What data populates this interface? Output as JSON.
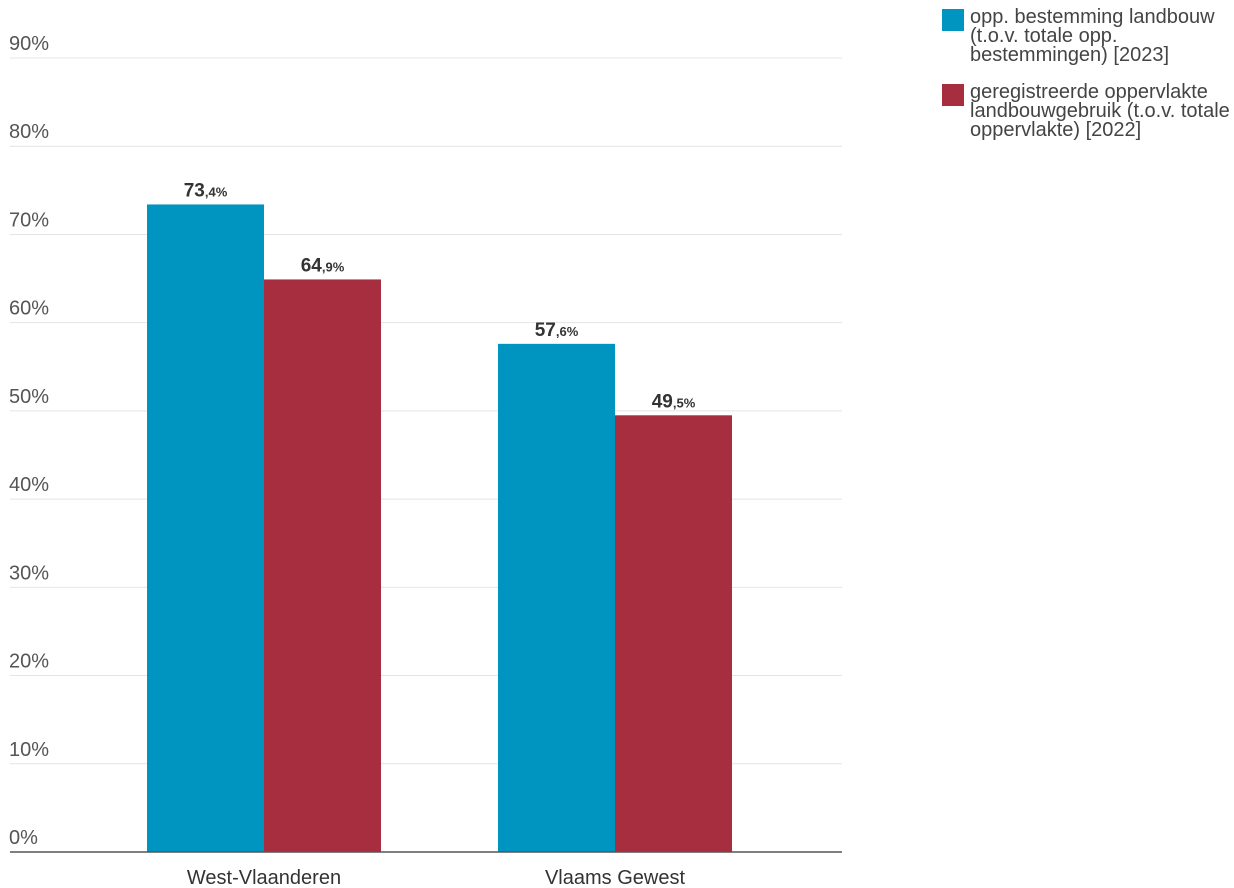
{
  "chart_data": {
    "type": "bar",
    "categories": [
      "West-Vlaanderen",
      "Vlaams Gewest"
    ],
    "series": [
      {
        "name": "opp. bestemming landbouw (t.o.v. totale opp. bestemmingen) [2023]",
        "values": [
          73.4,
          57.6
        ],
        "color": "#0095c0"
      },
      {
        "name": "geregistreerde oppervlakte landbouwgebruik (t.o.v. totale oppervlakte) [2022]",
        "values": [
          64.9,
          49.5
        ],
        "color": "#a72e3f"
      }
    ],
    "data_labels": [
      [
        {
          "int": "73",
          "dec": ",4%"
        },
        {
          "int": "57",
          "dec": ",6%"
        }
      ],
      [
        {
          "int": "64",
          "dec": ",9%"
        },
        {
          "int": "49",
          "dec": ",5%"
        }
      ]
    ],
    "y_ticks": [
      "0%",
      "10%",
      "20%",
      "30%",
      "40%",
      "50%",
      "60%",
      "70%",
      "80%",
      "90%"
    ],
    "ylim": [
      0,
      90
    ],
    "grid": true,
    "legend_position": "top-right",
    "title": "",
    "xlabel": "",
    "ylabel": ""
  }
}
